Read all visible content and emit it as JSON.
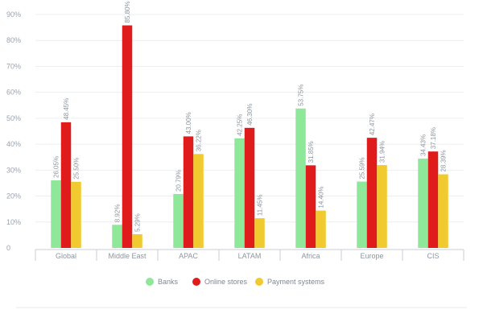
{
  "chart_data": {
    "type": "bar",
    "categories": [
      "Global",
      "Middle East",
      "APAC",
      "LATAM",
      "Africa",
      "Europe",
      "CIS"
    ],
    "series": [
      {
        "name": "Banks",
        "color": "#8fe79a",
        "values": [
          26.05,
          8.92,
          20.79,
          42.25,
          53.75,
          25.59,
          34.43
        ],
        "labels": [
          "26.05%",
          "8.92%",
          "20.79%",
          "42.25%",
          "53.75%",
          "25.59%",
          "34.43%"
        ]
      },
      {
        "name": "Online stores",
        "color": "#e01b1b",
        "values": [
          48.45,
          85.8,
          43.0,
          46.3,
          31.85,
          42.47,
          37.18
        ],
        "labels": [
          "48.45%",
          "85.80%",
          "43.00%",
          "46.30%",
          "31.85%",
          "42.47%",
          "37.18%"
        ]
      },
      {
        "name": "Payment systems",
        "color": "#f0ca2f",
        "values": [
          25.5,
          5.29,
          36.22,
          11.45,
          14.4,
          31.94,
          28.39
        ],
        "labels": [
          "25.50%",
          "5.29%",
          "36.22%",
          "11.45%",
          "14.40%",
          "31.94%",
          "28.39%"
        ]
      }
    ],
    "yticks": [
      "0",
      "10%",
      "20%",
      "30%",
      "40%",
      "50%",
      "60%",
      "70%",
      "80%",
      "90%"
    ],
    "ylim": [
      0,
      90
    ],
    "grid": true,
    "legend_position": "bottom-center",
    "title": "",
    "xlabel": "",
    "ylabel": ""
  }
}
